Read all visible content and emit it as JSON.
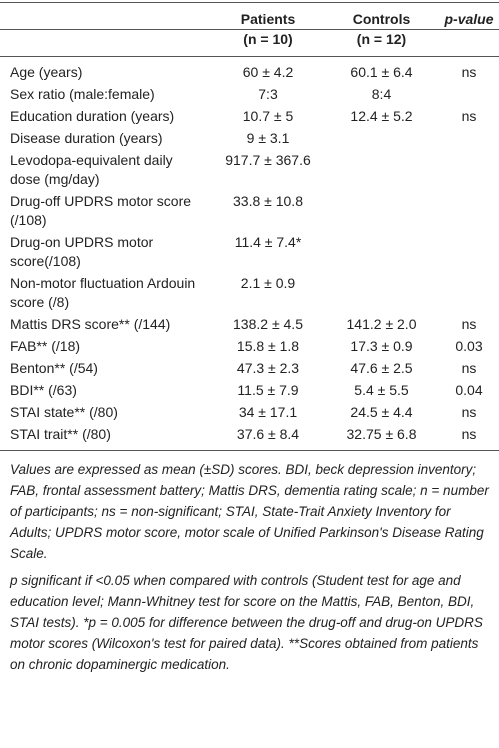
{
  "table": {
    "header": {
      "patients": [
        "Patients",
        "(n = 10)"
      ],
      "controls": [
        "Controls",
        "(n =  12)"
      ],
      "p_value": "p-value"
    },
    "rows": [
      {
        "label": "Age (years)",
        "patients": "60 ± 4.2",
        "controls": "60.1 ± 6.4",
        "p": "ns"
      },
      {
        "label": "Sex ratio (male:female)",
        "patients": "7:3",
        "controls": "8:4"
      },
      {
        "label": "Education duration (years)",
        "patients": "10.7 ± 5",
        "controls": "12.4 ± 5.2",
        "p": "ns"
      },
      {
        "label": "Disease duration (years)",
        "patients": "9 ± 3.1"
      },
      {
        "label": "Levodopa-equivalent daily dose (mg/day)",
        "patients": "917.7 ± 367.6"
      },
      {
        "label": "Drug-off UPDRS motor score (/108)",
        "patients": "33.8 ± 10.8"
      },
      {
        "label": "Drug-on UPDRS motor score(/108)",
        "patients": "11.4 ± 7.4*"
      },
      {
        "label": "Non-motor fluctuation Ardouin score (/8)",
        "patients": "2.1 ± 0.9"
      },
      {
        "label": "Mattis DRS score** (/144)",
        "patients": "138.2 ± 4.5",
        "controls": "141.2 ± 2.0",
        "p": "ns"
      },
      {
        "label": "FAB** (/18)",
        "patients": "15.8 ± 1.8",
        "controls": "17.3 ± 0.9",
        "p": "0.03"
      },
      {
        "label": "Benton** (/54)",
        "patients": "47.3 ± 2.3",
        "controls": "47.6 ± 2.5",
        "p": "ns"
      },
      {
        "label": "BDI** (/63)",
        "patients": "11.5 ± 7.9",
        "controls": "5.4 ± 5.5",
        "p": "0.04"
      },
      {
        "label": "STAI state** (/80)",
        "patients": "34 ± 17.1",
        "controls": "24.5 ± 4.4",
        "p": "ns"
      },
      {
        "label": "STAI trait** (/80)",
        "patients": "37.6 ± 8.4",
        "controls": "32.75 ± 6.8",
        "p": "ns"
      }
    ]
  },
  "notes": [
    "Values are expressed as mean (±SD) scores. BDI, beck depression inventory; FAB, frontal assessment battery; Mattis DRS, dementia rating scale; n = number of participants; ns = non-significant; STAI, State-Trait Anxiety Inventory for Adults; UPDRS motor score, motor scale of Unified Parkinson's Disease Rating Scale.",
    "p significant if <0.05 when compared with controls (Student test for age and education level; Mann-Whitney test for score on the Mattis, FAB, Benton, BDI, STAI tests). *p = 0.005 for difference between the drug-off and drug-on UPDRS motor scores (Wilcoxon's test for paired data). **Scores obtained from patients on chronic dopaminergic medication."
  ]
}
